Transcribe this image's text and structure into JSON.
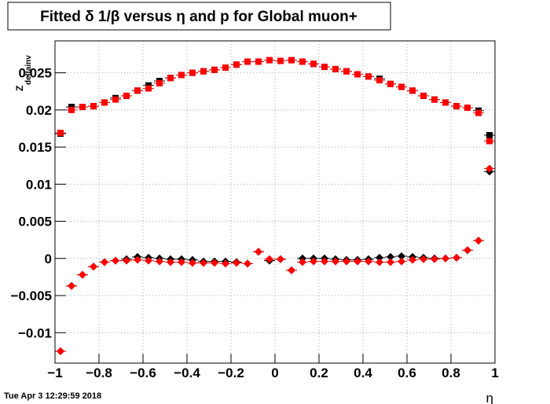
{
  "chart_data": {
    "type": "scatter",
    "title": "Fitted δ 1/β versus η and p for Global muon+",
    "ylabel": "Z",
    "ylabel_sub": "deltainv",
    "xlabel": "η",
    "timestamp": "Tue Apr  3 12:29:59 2018",
    "xlim": [
      -1,
      1
    ],
    "ylim": [
      -0.0141,
      0.0293
    ],
    "grid": true,
    "xticks": [
      {
        "value": -1,
        "label": "−1"
      },
      {
        "value": -0.8,
        "label": "−0.8"
      },
      {
        "value": -0.6,
        "label": "−0.6"
      },
      {
        "value": -0.4,
        "label": "−0.4"
      },
      {
        "value": -0.2,
        "label": "−0.2"
      },
      0,
      0.2,
      0.4,
      0.6,
      0.8,
      1
    ],
    "yticks": [
      {
        "value": -0.01,
        "label": "−0.01"
      },
      {
        "value": -0.005,
        "label": "−0.005"
      },
      0,
      0.005,
      0.01,
      0.015,
      0.02,
      0.025
    ],
    "x": [
      -0.975,
      -0.925,
      -0.875,
      -0.825,
      -0.775,
      -0.725,
      -0.675,
      -0.625,
      -0.575,
      -0.525,
      -0.475,
      -0.425,
      -0.375,
      -0.325,
      -0.275,
      -0.225,
      -0.175,
      -0.125,
      -0.075,
      -0.025,
      0.025,
      0.075,
      0.125,
      0.175,
      0.225,
      0.275,
      0.325,
      0.375,
      0.425,
      0.475,
      0.525,
      0.575,
      0.625,
      0.675,
      0.725,
      0.775,
      0.825,
      0.875,
      0.925,
      0.975
    ],
    "series": [
      {
        "color": "#000000",
        "marker": "diamond",
        "values": [
          -0.0125,
          -0.0037,
          -0.0022,
          -0.0011,
          -0.0005,
          -0.0003,
          -0.0001,
          0.0002,
          0.0001,
          0,
          -0.0001,
          -0.0001,
          -0.0002,
          -0.0004,
          -0.0004,
          -0.0004,
          -0.0005,
          -0.0007,
          0.0009,
          -0.0003,
          -0.0001,
          -0.0016,
          0,
          0,
          0,
          -0.0001,
          -0.0002,
          -0.0002,
          -0.0001,
          0.0001,
          0.0002,
          0.0003,
          0.0002,
          0.0001,
          0,
          0,
          0.0001,
          0.0011,
          0.0024,
          0.0117
        ]
      },
      {
        "color": "#ff0000",
        "marker": "diamond",
        "values": [
          -0.0125,
          -0.0037,
          -0.0022,
          -0.0011,
          -0.0005,
          -0.0003,
          -0.0003,
          -0.0002,
          -0.0003,
          -0.0004,
          -0.0005,
          -0.0005,
          -0.0006,
          -0.0006,
          -0.0006,
          -0.0007,
          -0.0006,
          -0.0007,
          0.0009,
          -0.0001,
          -0.0001,
          -0.0016,
          -0.0005,
          -0.0004,
          -0.0004,
          -0.0004,
          -0.0004,
          -0.0004,
          -0.0004,
          -0.0005,
          -0.0005,
          -0.0004,
          -0.0002,
          -0.0001,
          -0.0001,
          0,
          0.0001,
          0.0011,
          0.0024,
          0.0121
        ]
      },
      {
        "color": "#000000",
        "marker": "square",
        "values": [
          0.0168,
          0.0204,
          0.0204,
          0.0205,
          0.021,
          0.0216,
          0.0219,
          0.0226,
          0.0233,
          0.0239,
          0.0243,
          0.0247,
          0.025,
          0.0252,
          0.0254,
          0.0257,
          0.0261,
          0.0265,
          0.0265,
          0.0267,
          0.0266,
          0.0267,
          0.0265,
          0.0262,
          0.0258,
          0.0255,
          0.0252,
          0.0248,
          0.0245,
          0.0242,
          0.0235,
          0.0231,
          0.0226,
          0.0219,
          0.0214,
          0.021,
          0.0205,
          0.0203,
          0.0199,
          0.0166
        ]
      },
      {
        "color": "#ff0000",
        "marker": "square",
        "values": [
          0.0169,
          0.02,
          0.0204,
          0.0205,
          0.021,
          0.0214,
          0.0219,
          0.0226,
          0.0229,
          0.0236,
          0.0243,
          0.0247,
          0.025,
          0.0252,
          0.0254,
          0.0257,
          0.0261,
          0.0265,
          0.0265,
          0.0267,
          0.0266,
          0.0267,
          0.0265,
          0.0262,
          0.0258,
          0.0255,
          0.0252,
          0.0248,
          0.0245,
          0.024,
          0.0235,
          0.0231,
          0.0226,
          0.0219,
          0.0214,
          0.021,
          0.0205,
          0.0203,
          0.0196,
          0.0158
        ]
      }
    ]
  }
}
